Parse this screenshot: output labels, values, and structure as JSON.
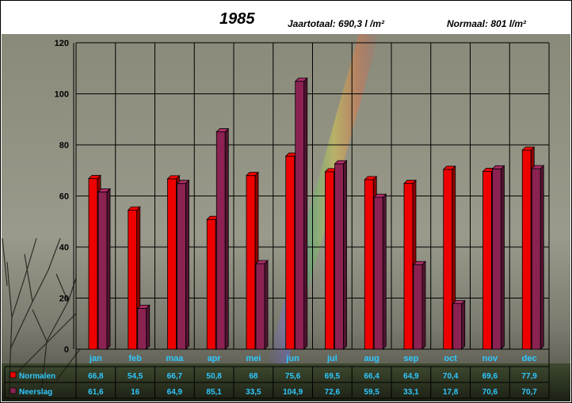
{
  "header": {
    "year": "1985",
    "total": "Jaartotaal: 690,3 l /m²",
    "normal": "Normaal: 801 l/m²"
  },
  "chart_data": {
    "type": "bar",
    "categories": [
      "jan",
      "feb",
      "maa",
      "apr",
      "mei",
      "jun",
      "jul",
      "aug",
      "sep",
      "oct",
      "nov",
      "dec"
    ],
    "series": [
      {
        "name": "Normalen",
        "color": "#ee0000",
        "values": [
          66.8,
          54.5,
          66.7,
          50.8,
          68,
          75.6,
          69.5,
          66.4,
          64.9,
          70.4,
          69.6,
          77.9
        ],
        "labels": [
          "66,8",
          "54,5",
          "66,7",
          "50,8",
          "68",
          "75,6",
          "69,5",
          "66,4",
          "64,9",
          "70,4",
          "69,6",
          "77,9"
        ]
      },
      {
        "name": "Neerslag",
        "color": "#8b2252",
        "values": [
          61.6,
          16,
          64.9,
          85.1,
          33.5,
          104.9,
          72.6,
          59.5,
          33.1,
          17.8,
          70.6,
          70.7
        ],
        "labels": [
          "61,6",
          "16",
          "64,9",
          "85,1",
          "33,5",
          "104,9",
          "72,6",
          "59,5",
          "33,1",
          "17,8",
          "70,6",
          "70,7"
        ]
      }
    ],
    "yticks": [
      "0",
      "20",
      "40",
      "60",
      "80",
      "100",
      "120"
    ],
    "ylim": [
      0,
      120
    ],
    "grid": true,
    "legend": "data-table-left",
    "background": "photo-rainbow-landscape"
  }
}
